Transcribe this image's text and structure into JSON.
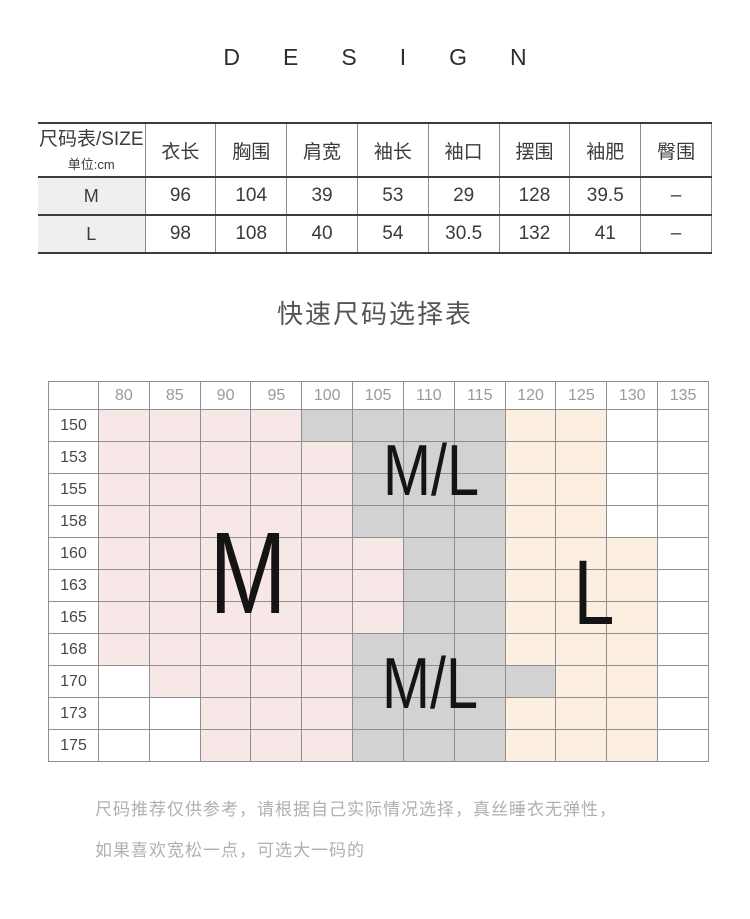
{
  "design_title": "DESIGN",
  "size_table": {
    "corner": {
      "line1": "尺码表/SIZE",
      "line2": "单位:cm"
    },
    "columns": [
      "衣长",
      "胸围",
      "肩宽",
      "袖长",
      "袖口",
      "摆围",
      "袖肥",
      "臀围"
    ],
    "rows": [
      {
        "label": "M",
        "values": [
          "96",
          "104",
          "39",
          "53",
          "29",
          "128",
          "39.5",
          "–"
        ]
      },
      {
        "label": "L",
        "values": [
          "98",
          "108",
          "40",
          "54",
          "30.5",
          "132",
          "41",
          "–"
        ]
      }
    ]
  },
  "quick_chart": {
    "title": "快速尺码选择表",
    "col_headers": [
      "80",
      "85",
      "90",
      "95",
      "100",
      "105",
      "110",
      "115",
      "120",
      "125",
      "130",
      "135"
    ],
    "row_headers": [
      "150",
      "153",
      "155",
      "158",
      "160",
      "163",
      "165",
      "168",
      "170",
      "173",
      "175"
    ],
    "cells": [
      "ppppggggooww",
      "pppppgggooww",
      "pppppgggooww",
      "pppppgggooww",
      "ppppppggooow",
      "ppppppggooow",
      "ppppppggooow",
      "pppppgggooow",
      "wppppggggoow",
      "wwpppgggooow",
      "wwpppgggooow"
    ],
    "colors": {
      "p": "#f8e7e7",
      "g": "#d2d2d2",
      "o": "#fcefe1",
      "w": "#ffffff"
    },
    "overlays": [
      {
        "text": "M/L",
        "pos": "ml-top"
      },
      {
        "text": "M",
        "pos": "m-main"
      },
      {
        "text": "L",
        "pos": "l-main"
      },
      {
        "text": "M/L",
        "pos": "ml-bottom"
      }
    ]
  },
  "footer": {
    "line1": "尺码推荐仅供参考，请根据自己实际情况选择，真丝睡衣无弹性，",
    "line2": "如果喜欢宽松一点，可选大一码的"
  }
}
